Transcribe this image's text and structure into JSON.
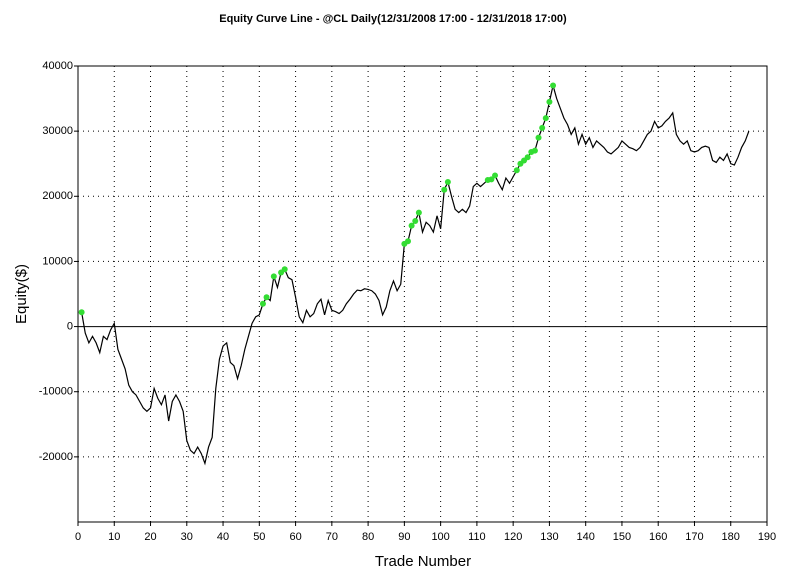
{
  "chart_data": {
    "type": "line",
    "title": "Equity Curve Line - @CL Daily(12/31/2008 17:00 - 12/31/2018 17:00)",
    "x_label": "Trade Number",
    "y_label": "Equity($)",
    "xlim": [
      0,
      190
    ],
    "xticks": [
      0,
      10,
      20,
      30,
      40,
      50,
      60,
      70,
      80,
      90,
      100,
      110,
      120,
      130,
      140,
      150,
      160,
      170,
      180,
      190
    ],
    "ylim": [
      -30000,
      40000
    ],
    "yticks": [
      -20000,
      -10000,
      0,
      10000,
      20000,
      30000,
      40000
    ],
    "grid": true,
    "series": [
      {
        "color": "#000000",
        "marker": false,
        "x": [
          1,
          2,
          3,
          4,
          5,
          6,
          7,
          8,
          9,
          10,
          11,
          12,
          13,
          14,
          15,
          16,
          17,
          18,
          19,
          20,
          21,
          22,
          23,
          24,
          25,
          26,
          27,
          28,
          29,
          30,
          31,
          32,
          33,
          34,
          35,
          36,
          37,
          38,
          39,
          40,
          41,
          42,
          43,
          44,
          45,
          46,
          47,
          48,
          49,
          50,
          51,
          52,
          53,
          54,
          55,
          56,
          57,
          58,
          59,
          60,
          61,
          62,
          63,
          64,
          65,
          66,
          67,
          68,
          69,
          70,
          71,
          72,
          73,
          74,
          75,
          76,
          77,
          78,
          79,
          80,
          81,
          82,
          83,
          84,
          85,
          86,
          87,
          88,
          89,
          90,
          91,
          92,
          93,
          94,
          95,
          96,
          97,
          98,
          99,
          100,
          101,
          102,
          103,
          104,
          105,
          106,
          107,
          108,
          109,
          110,
          111,
          112,
          113,
          114,
          115,
          116,
          117,
          118,
          119,
          120,
          121,
          122,
          123,
          124,
          125,
          126,
          127,
          128,
          129,
          130,
          131,
          132,
          133,
          134,
          135,
          136,
          137,
          138,
          139,
          140,
          141,
          142,
          143,
          144,
          145,
          146,
          147,
          148,
          149,
          150,
          151,
          152,
          153,
          154,
          155,
          156,
          157,
          158,
          159,
          160,
          161,
          162,
          163,
          164,
          165,
          166,
          167,
          168,
          169,
          170,
          171,
          172,
          173,
          174,
          175,
          176,
          177,
          178,
          179,
          180,
          181,
          182,
          183,
          184,
          185
        ],
        "values": [
          2200,
          -1000,
          -2500,
          -1500,
          -2500,
          -4000,
          -1500,
          -2000,
          -500,
          500,
          -3500,
          -5000,
          -6500,
          -9000,
          -10000,
          -10500,
          -11500,
          -12500,
          -13000,
          -12500,
          -9500,
          -11000,
          -12000,
          -10500,
          -14500,
          -11500,
          -10500,
          -11500,
          -13000,
          -17500,
          -19000,
          -19500,
          -18500,
          -19500,
          -21000,
          -18500,
          -17000,
          -9500,
          -5000,
          -3000,
          -2500,
          -5500,
          -6000,
          -8000,
          -6000,
          -3500,
          -1500,
          500,
          1500,
          1800,
          3500,
          4500,
          4000,
          7700,
          6000,
          8300,
          8800,
          7500,
          7200,
          4500,
          1500,
          600,
          2500,
          1500,
          2000,
          3500,
          4200,
          1800,
          4000,
          2500,
          2300,
          2000,
          2500,
          3500,
          4200,
          5000,
          5600,
          5500,
          5800,
          5700,
          5500,
          5000,
          4000,
          1800,
          3000,
          5500,
          7000,
          5500,
          6500,
          12700,
          13100,
          15500,
          16200,
          17500,
          14500,
          16000,
          15500,
          14500,
          17000,
          15000,
          21000,
          22200,
          20000,
          18000,
          17500,
          18000,
          17500,
          18500,
          21500,
          22000,
          21500,
          22000,
          22500,
          22600,
          23200,
          22000,
          21000,
          22800,
          22000,
          23000,
          24000,
          25000,
          25500,
          26000,
          26800,
          27000,
          29000,
          30500,
          32000,
          34500,
          37000,
          35000,
          33500,
          32000,
          31000,
          29500,
          30500,
          28000,
          29500,
          28000,
          29000,
          27500,
          28500,
          28000,
          27500,
          26800,
          26500,
          27000,
          27500,
          28500,
          28000,
          27500,
          27300,
          27000,
          27500,
          28500,
          29500,
          30000,
          31500,
          30500,
          30800,
          31500,
          32000,
          32800,
          29500,
          28500,
          28000,
          28500,
          27000,
          26800,
          27000,
          27500,
          27700,
          27500,
          25500,
          25200,
          26000,
          25500,
          26500,
          25000,
          24800,
          26000,
          27500,
          28500,
          30000
        ]
      },
      {
        "color": "#33dd33",
        "marker": true,
        "x": [
          1,
          51,
          52,
          54,
          56,
          57,
          90,
          91,
          92,
          93,
          94,
          101,
          102,
          113,
          114,
          115,
          121,
          122,
          123,
          124,
          125,
          126,
          127,
          128,
          129,
          130,
          131
        ],
        "values": [
          2200,
          3500,
          4500,
          7700,
          8300,
          8800,
          12700,
          13100,
          15500,
          16200,
          17500,
          21000,
          22200,
          22500,
          22600,
          23200,
          24000,
          25000,
          25500,
          26000,
          26800,
          27000,
          29000,
          30500,
          32000,
          34500,
          37000
        ]
      }
    ]
  }
}
